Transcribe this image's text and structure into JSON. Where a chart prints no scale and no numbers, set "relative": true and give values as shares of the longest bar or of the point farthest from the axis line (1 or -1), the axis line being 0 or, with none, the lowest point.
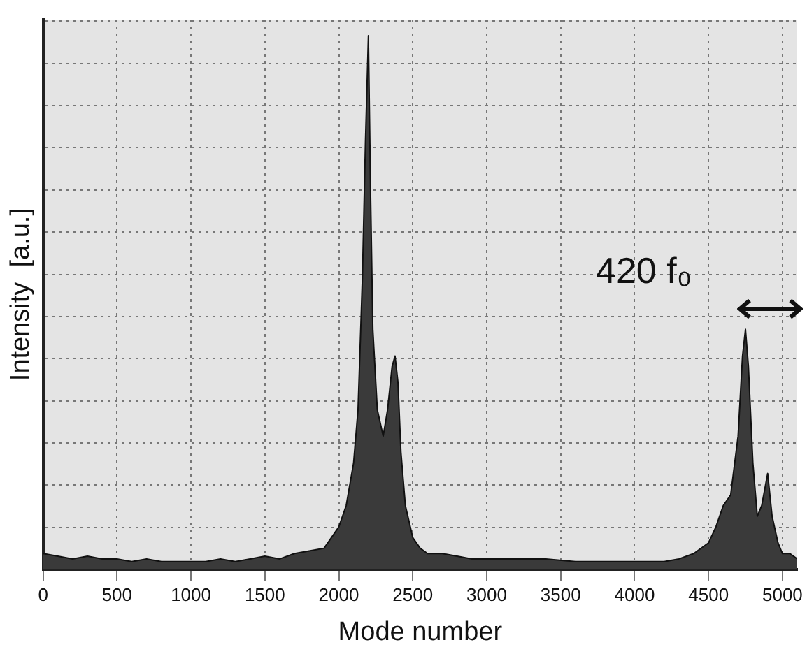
{
  "chart_data": {
    "type": "area",
    "xlabel": "Mode number",
    "ylabel": "Intensity  [a.u.]",
    "relative": true,
    "grid": true,
    "line_style": "solid",
    "marker": "none",
    "xlim": [
      0,
      5100
    ],
    "xticks": [
      0,
      500,
      1000,
      1500,
      2000,
      2500,
      3000,
      3500,
      4000,
      4500,
      5000
    ],
    "x": [
      0,
      100,
      200,
      300,
      400,
      500,
      600,
      700,
      800,
      900,
      1000,
      1100,
      1200,
      1300,
      1400,
      1500,
      1600,
      1700,
      1800,
      1900,
      1950,
      2000,
      2050,
      2100,
      2130,
      2160,
      2180,
      2200,
      2215,
      2230,
      2260,
      2300,
      2330,
      2360,
      2380,
      2400,
      2420,
      2450,
      2500,
      2550,
      2600,
      2700,
      2800,
      2900,
      3000,
      3200,
      3400,
      3600,
      3800,
      4000,
      4200,
      4300,
      4400,
      4500,
      4550,
      4600,
      4650,
      4700,
      4730,
      4750,
      4770,
      4800,
      4830,
      4860,
      4900,
      4930,
      4970,
      5000,
      5050,
      5100
    ],
    "series": [
      {
        "color": "#3a3a3a",
        "values": [
          0.03,
          0.025,
          0.02,
          0.025,
          0.02,
          0.02,
          0.015,
          0.02,
          0.015,
          0.015,
          0.015,
          0.015,
          0.02,
          0.015,
          0.02,
          0.025,
          0.02,
          0.03,
          0.035,
          0.04,
          0.06,
          0.08,
          0.12,
          0.2,
          0.3,
          0.55,
          0.8,
          1,
          0.7,
          0.45,
          0.3,
          0.25,
          0.3,
          0.38,
          0.4,
          0.35,
          0.22,
          0.12,
          0.06,
          0.04,
          0.03,
          0.03,
          0.025,
          0.02,
          0.02,
          0.02,
          0.02,
          0.015,
          0.015,
          0.015,
          0.015,
          0.02,
          0.03,
          0.05,
          0.08,
          0.12,
          0.14,
          0.25,
          0.4,
          0.45,
          0.38,
          0.2,
          0.1,
          0.12,
          0.18,
          0.1,
          0.05,
          0.03,
          0.03,
          0.02
        ]
      }
    ],
    "annotations": [
      "420 f₀"
    ]
  }
}
